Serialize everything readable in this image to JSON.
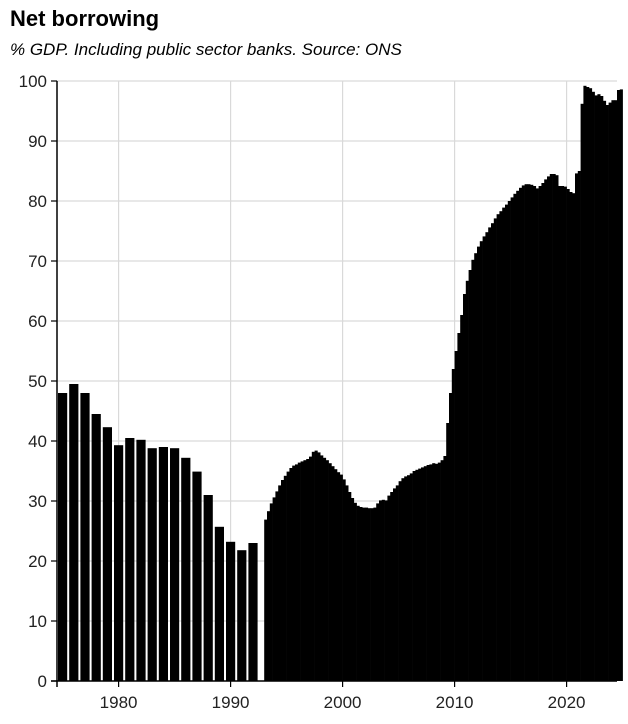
{
  "chart_data": {
    "type": "bar",
    "title": "Net borrowing",
    "subtitle": "% GDP. Including public sector banks. Source: ONS",
    "xlabel": "",
    "ylabel": "",
    "ylim": [
      0,
      100
    ],
    "xlim": [
      1974.5,
      2024.5
    ],
    "grid": true,
    "y_ticks": [
      0,
      10,
      20,
      30,
      40,
      50,
      60,
      70,
      80,
      90,
      100
    ],
    "x_ticks": [
      1980,
      1990,
      2000,
      2010,
      2020
    ],
    "bar_color": "#000000",
    "annual": {
      "years": [
        1975,
        1976,
        1977,
        1978,
        1979,
        1980,
        1981,
        1982,
        1983,
        1984,
        1985,
        1986,
        1987,
        1988,
        1989,
        1990,
        1991,
        1992
      ],
      "values": [
        48.0,
        49.5,
        48.0,
        44.5,
        42.3,
        39.3,
        40.5,
        40.2,
        38.8,
        39.0,
        38.8,
        37.2,
        34.9,
        31.0,
        25.7,
        23.2,
        21.8,
        23.0
      ]
    },
    "quarterly": {
      "start": 1993.0,
      "step": 0.25,
      "values": [
        26.9,
        28.3,
        29.6,
        30.6,
        31.6,
        32.6,
        33.5,
        34.2,
        34.9,
        35.5,
        35.9,
        36.1,
        36.4,
        36.6,
        36.8,
        37.0,
        37.4,
        38.2,
        38.4,
        38.1,
        37.6,
        37.2,
        36.8,
        36.3,
        35.8,
        35.3,
        34.8,
        34.4,
        33.6,
        32.6,
        31.5,
        30.5,
        29.7,
        29.2,
        29.0,
        28.9,
        28.9,
        28.8,
        28.8,
        28.9,
        29.6,
        30.1,
        30.2,
        30.1,
        30.9,
        31.5,
        32.1,
        32.6,
        33.3,
        33.8,
        34.1,
        34.3,
        34.6,
        35.0,
        35.2,
        35.4,
        35.6,
        35.8,
        36.0,
        36.1,
        36.3,
        36.2,
        36.4,
        36.8,
        37.5,
        43.0,
        48.0,
        52.0,
        55.0,
        58.0,
        61.0,
        64.5,
        66.7,
        68.5,
        70.2,
        71.3,
        72.4,
        73.3,
        74.1,
        74.8,
        75.6,
        76.3,
        77.1,
        77.8,
        78.3,
        78.9,
        79.4,
        80.0,
        80.6,
        81.2,
        81.7,
        82.2,
        82.6,
        82.8,
        82.8,
        82.7,
        82.5,
        82.1,
        82.5,
        83.0,
        83.6,
        84.1,
        84.5,
        84.5,
        84.3,
        82.5,
        82.5,
        82.4,
        82.0,
        81.5,
        81.3,
        84.6,
        85.0,
        96.2,
        99.2,
        99.0,
        98.8,
        98.2,
        97.6,
        97.8,
        97.5,
        96.7,
        96.0,
        96.4,
        96.8,
        96.8,
        98.5,
        98.6
      ]
    }
  }
}
